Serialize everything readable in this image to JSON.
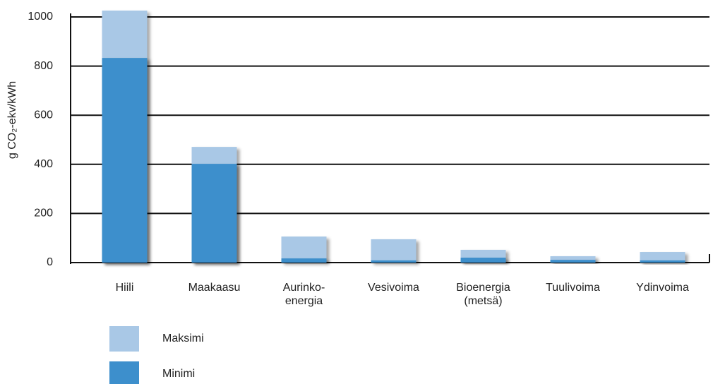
{
  "chart_data": {
    "type": "bar",
    "ylabel": "g CO₂-ekv/kWh",
    "categories": [
      "Hiili",
      "Maakaasu",
      "Aurinko-\nenergia",
      "Vesivoima",
      "Bioenergia\n(metsä)",
      "Tuulivoima",
      "Ydinvoima"
    ],
    "series": [
      {
        "name": "Maksimi",
        "color": "#a9c8e6",
        "values": [
          1026,
          471,
          106,
          95,
          52,
          26,
          43
        ]
      },
      {
        "name": "Minimi",
        "color": "#3d8fcc",
        "values": [
          833,
          402,
          17,
          9,
          20,
          11,
          9
        ]
      }
    ],
    "ylim": [
      0,
      1000
    ],
    "yticks": [
      0,
      200,
      400,
      600,
      800,
      1000
    ],
    "grid": true
  }
}
